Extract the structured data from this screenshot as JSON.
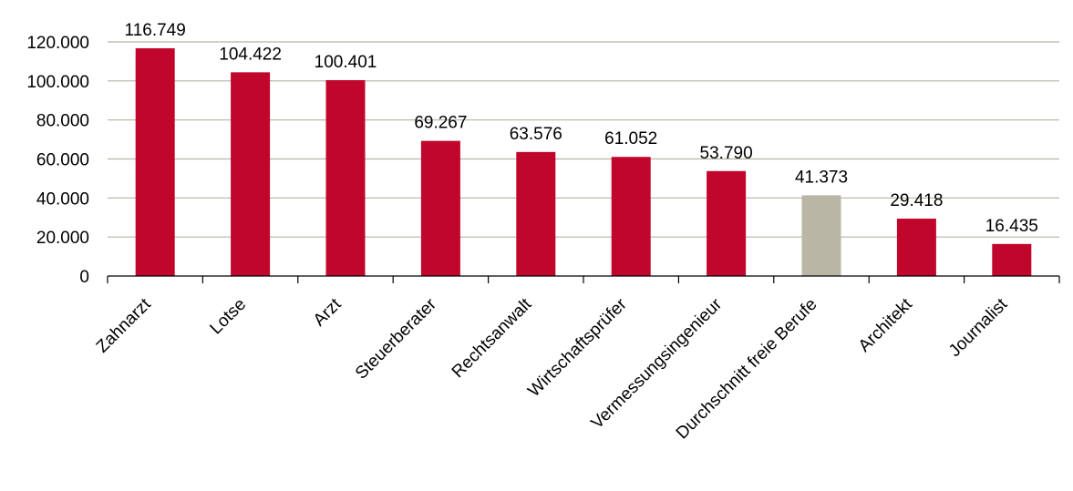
{
  "chart_data": {
    "type": "bar",
    "categories": [
      "Zahnarzt",
      "Lotse",
      "Arzt",
      "Steuerberater",
      "Rechtsanwalt",
      "Wirtschaftsprüfer",
      "Vermessungsingenieur",
      "Durchschnitt freie Berufe",
      "Architekt",
      "Journalist"
    ],
    "values": [
      116749,
      104422,
      100401,
      69267,
      63576,
      61052,
      53790,
      41373,
      29418,
      16435
    ],
    "value_labels": [
      "116.749",
      "104.422",
      "100.401",
      "69.267",
      "63.576",
      "61.052",
      "53.790",
      "41.373",
      "29.418",
      "16.435"
    ],
    "highlight_index": 7,
    "ylim": [
      0,
      120000
    ],
    "y_ticks": [
      0,
      20000,
      40000,
      60000,
      80000,
      100000,
      120000
    ],
    "y_tick_labels": [
      "0",
      "20.000",
      "40.000",
      "60.000",
      "80.000",
      "100.000",
      "120.000"
    ],
    "grid": true,
    "legend": "none",
    "colors": {
      "bar": "#c0072b",
      "highlight": "#b9b6a6",
      "grid": "#b8b3a3"
    }
  }
}
